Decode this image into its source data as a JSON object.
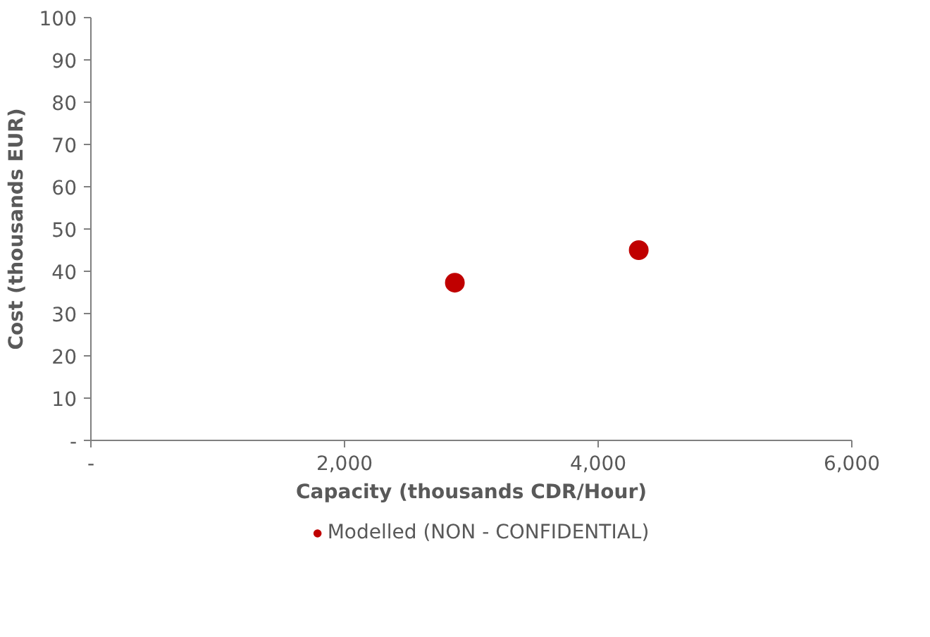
{
  "chart_data": {
    "type": "scatter",
    "xlabel": "Capacity (thousands CDR/Hour)",
    "ylabel": "Cost (thousands EUR)",
    "series": [
      {
        "name": "Modelled (NON - CONFIDENTIAL)",
        "color": "#c00000",
        "x": [
          2870,
          4320
        ],
        "values": [
          37.3,
          45
        ]
      }
    ],
    "xlim": [
      0,
      6000
    ],
    "xticks": [
      {
        "value": 0,
        "label": "-"
      },
      {
        "value": 2000,
        "label": "2,000"
      },
      {
        "value": 4000,
        "label": "4,000"
      },
      {
        "value": 6000,
        "label": "6,000"
      }
    ],
    "ylim": [
      0,
      100
    ],
    "yticks": [
      {
        "value": 0,
        "label": "-"
      },
      10,
      20,
      30,
      40,
      50,
      60,
      70,
      80,
      90,
      100
    ],
    "grid": false,
    "legend": "bottom",
    "marker": "circle"
  }
}
